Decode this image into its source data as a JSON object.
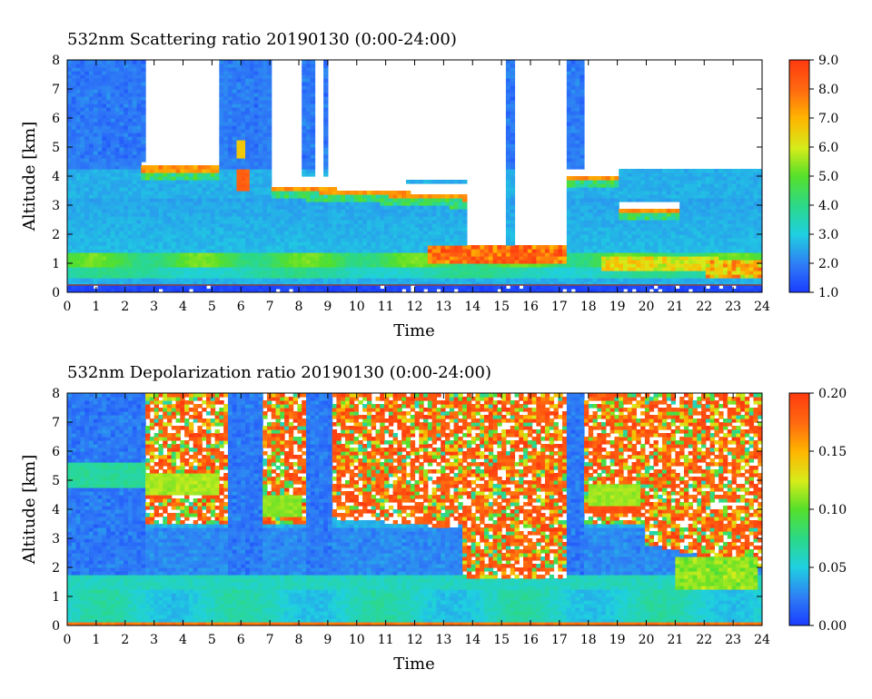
{
  "chart_data": [
    {
      "type": "heatmap",
      "title": "532nm Scattering ratio  20190130 (0:00-24:00)",
      "xlabel": "Time",
      "ylabel": "Altitude [km]",
      "x_ticks": [
        "0",
        "1",
        "2",
        "3",
        "4",
        "5",
        "6",
        "7",
        "8",
        "9",
        "10",
        "11",
        "12",
        "13",
        "14",
        "15",
        "16",
        "17",
        "18",
        "19",
        "20",
        "21",
        "22",
        "23",
        "24"
      ],
      "y_ticks": [
        "0",
        "1",
        "2",
        "3",
        "4",
        "5",
        "6",
        "7",
        "8"
      ],
      "xlim": [
        0,
        24
      ],
      "ylim": [
        0,
        8
      ],
      "colorbar": {
        "range": [
          1.0,
          9.0
        ],
        "ticks": [
          "1.0",
          "2.0",
          "3.0",
          "4.0",
          "5.0",
          "6.0",
          "7.0",
          "8.0",
          "9.0"
        ]
      },
      "features": [
        {
          "kind": "low_layer",
          "alt_bottom_km": 0.4,
          "alt_top_km": 1.3,
          "value": 5.0
        },
        {
          "kind": "cloud_base",
          "t_start": 2.6,
          "t_end": 5.3,
          "alt_km": 4.2,
          "value": 9.0
        },
        {
          "kind": "cloud_base",
          "t_start": 7.0,
          "t_end": 13.8,
          "alt_km": 3.2,
          "value": 9.0
        },
        {
          "kind": "cloud_base",
          "t_start": 17.2,
          "t_end": 19.0,
          "alt_km": 3.9,
          "value": 9.0
        },
        {
          "kind": "low_cloud",
          "t_start": 12.5,
          "t_end": 17.0,
          "alt_km": 1.3,
          "value": 9.0
        },
        {
          "kind": "no_data_above_cloud",
          "t_start": 2.7,
          "t_end": 17.2
        }
      ]
    },
    {
      "type": "heatmap",
      "title": "532nm Depolarization ratio  20190130 (0:00-24:00)",
      "xlabel": "Time",
      "ylabel": "Altitude [km]",
      "x_ticks": [
        "0",
        "1",
        "2",
        "3",
        "4",
        "5",
        "6",
        "7",
        "8",
        "9",
        "10",
        "11",
        "12",
        "13",
        "14",
        "15",
        "16",
        "17",
        "18",
        "19",
        "20",
        "21",
        "22",
        "23",
        "24"
      ],
      "y_ticks": [
        "0",
        "1",
        "2",
        "3",
        "4",
        "5",
        "6",
        "7",
        "8"
      ],
      "xlim": [
        0,
        24
      ],
      "ylim": [
        0,
        8
      ],
      "colorbar": {
        "range": [
          0.0,
          0.2
        ],
        "ticks": [
          "0.00",
          "0.05",
          "0.10",
          "0.15",
          "0.20"
        ]
      },
      "features": [
        {
          "kind": "ice_cloud",
          "t_start": 2.7,
          "t_end": 5.3,
          "alt_bottom_km": 4.4,
          "alt_top_km": 5.3,
          "value": 0.11
        },
        {
          "kind": "noisy_upper",
          "t_start": 2.7,
          "t_end": 24,
          "alt_bottom_km": 3.5,
          "alt_top_km": 8,
          "value": 0.2
        },
        {
          "kind": "cloud_base",
          "t_start": 9.2,
          "t_end": 13.5,
          "alt_km": 3.5,
          "value": 0.2
        },
        {
          "kind": "ice_cloud",
          "t_start": 18.0,
          "t_end": 19.8,
          "alt_bottom_km": 4.0,
          "alt_top_km": 4.9,
          "value": 0.11
        }
      ]
    }
  ]
}
